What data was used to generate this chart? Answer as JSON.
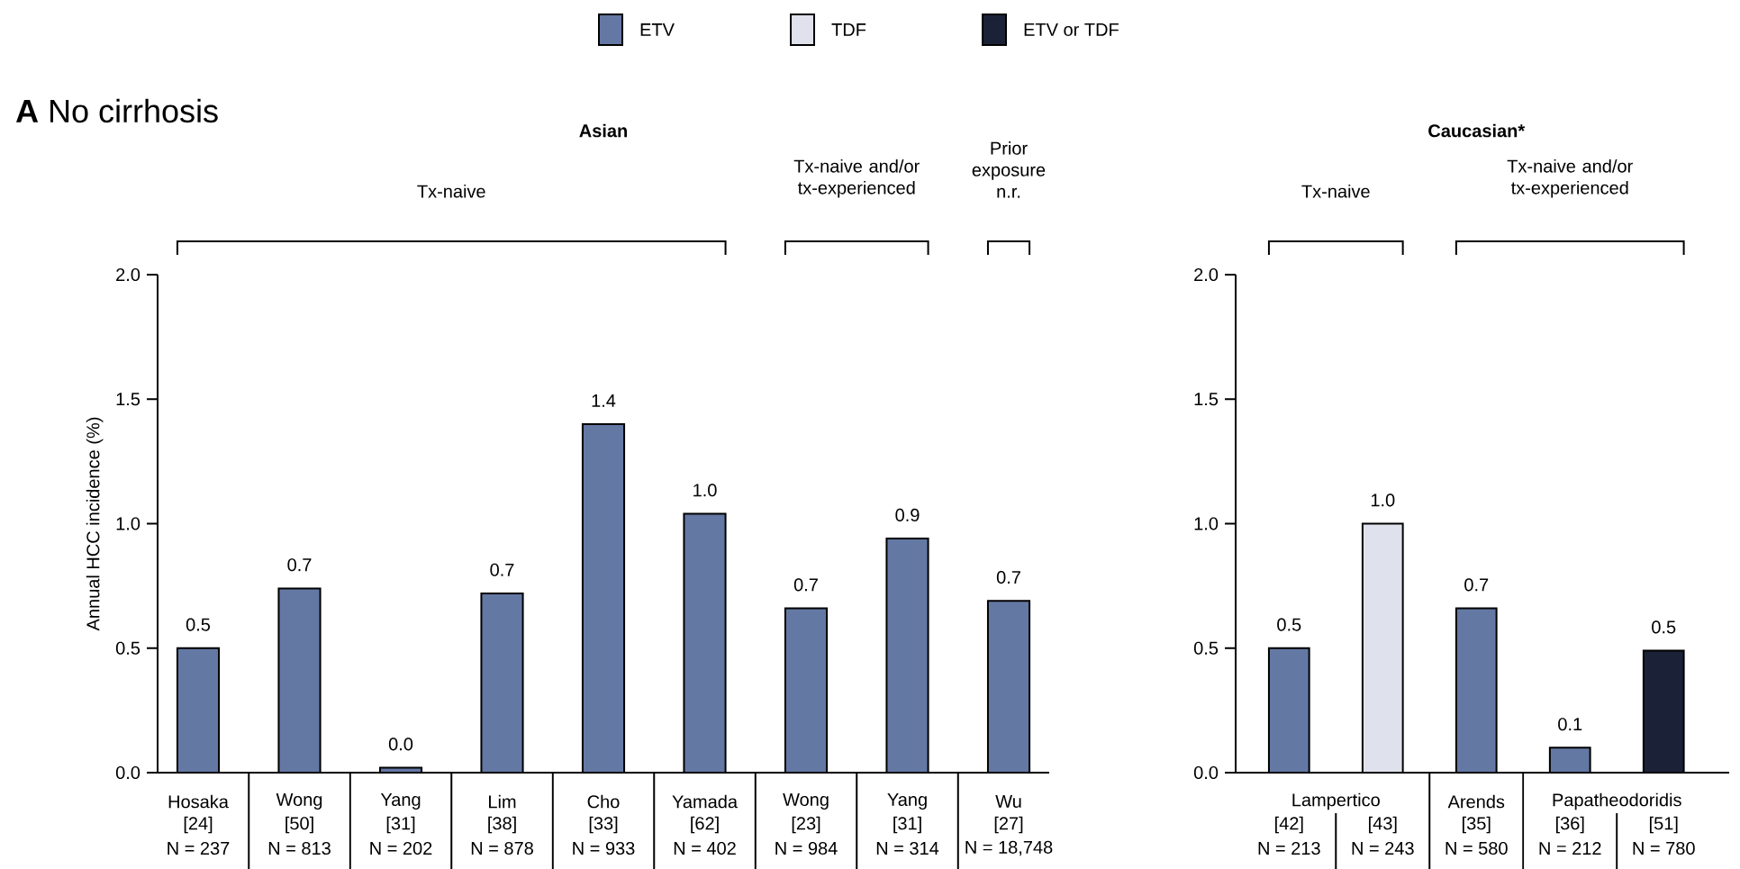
{
  "chart_data": [
    {
      "type": "bar",
      "title": "**A** No cirrhosis",
      "subtitle": "Asian",
      "ylabel": "Annual HCC incidence (%)",
      "categories": [
        "Hosaka",
        "Wong",
        "Yang",
        "Lim",
        "Cho",
        "Yamada",
        "Wong",
        "Yang",
        "Wu"
      ],
      "series": [
        {
          "color": "#6478a4",
          "values": [
            0.5,
            0.74,
            0.02,
            0.72,
            1.4,
            1.04,
            0.66,
            0.94,
            0.69
          ],
          "value_labels": [
            "0.5",
            "0.7",
            "0.0",
            "0.7",
            "1.4",
            "1.0",
            "0.7",
            "0.9",
            "0.7"
          ]
        }
      ],
      "ylim": [
        0,
        2
      ],
      "yticks": [
        {
          "value": 0,
          "label": "0.0"
        },
        {
          "value": 0.5,
          "label": "0.5"
        },
        {
          "value": 1,
          "label": "1.0"
        },
        {
          "value": 1.5,
          "label": "1.5"
        },
        {
          "value": 2,
          "label": "2.0"
        }
      ],
      "annotations": [
        "Tx-naive",
        "Tx-naive and/or tx-experienced",
        "Prior exposure n.r.",
        "[24]",
        "[50]",
        "[31]",
        "[38]",
        "[33]",
        "[62]",
        "[23]",
        "[31]",
        "[27]",
        "N = 237",
        "N = 813",
        "N = 202",
        "N = 878",
        "N = 933",
        "N = 402",
        "N = 984",
        "N = 314",
        "N = 18,748"
      ]
    },
    {
      "type": "bar",
      "subtitle": "Caucasian*",
      "categories": [
        "[42]",
        "[43]",
        "[35]",
        "[36]",
        "[51]"
      ],
      "series": [
        {
          "name": "ETV",
          "color": "#6478a4",
          "values": [
            0.5,
            null,
            0.66,
            0.1,
            null
          ],
          "value_labels": [
            "0.5",
            null,
            "0.7",
            "0.1",
            null
          ]
        },
        {
          "name": "TDF",
          "color": "#dfe2ec",
          "values": [
            null,
            1.0,
            null,
            null,
            null
          ],
          "value_labels": [
            null,
            "1.0",
            null,
            null,
            null
          ]
        },
        {
          "name": "ETV or TDF",
          "color": "#1b2238",
          "values": [
            null,
            null,
            null,
            null,
            0.49
          ],
          "value_labels": [
            null,
            null,
            null,
            null,
            "0.5"
          ]
        }
      ],
      "ylim": [
        0,
        2
      ],
      "yticks": [
        {
          "value": 0,
          "label": "0.0"
        },
        {
          "value": 0.5,
          "label": "0.5"
        },
        {
          "value": 1,
          "label": "1.0"
        },
        {
          "value": 1.5,
          "label": "1.5"
        },
        {
          "value": 2,
          "label": "2.0"
        }
      ],
      "legend": "top",
      "annotations": [
        "Tx-naive",
        "Tx-naive and/or tx-experienced",
        "Lampertico",
        "Arends",
        "Papatheodoridis",
        "N = 213",
        "N = 243",
        "N = 580",
        "N = 212",
        "N = 780"
      ]
    }
  ]
}
